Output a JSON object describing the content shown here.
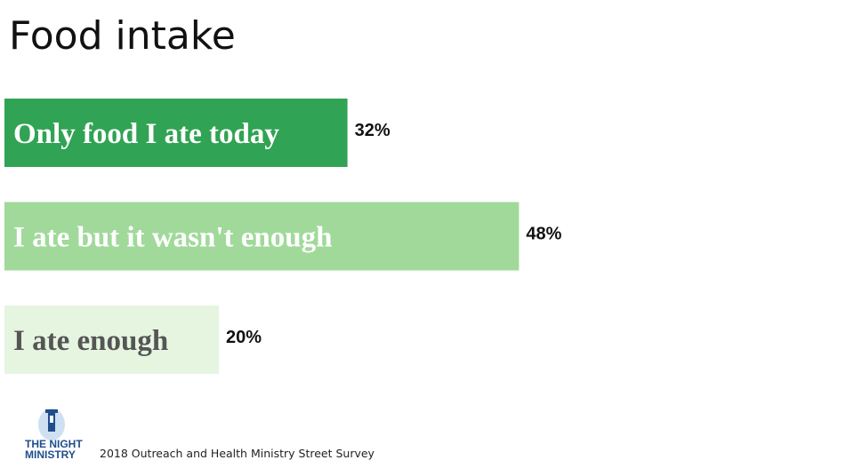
{
  "chart_data": {
    "type": "hbar",
    "title": "Food intake",
    "categories": [
      "Only food I ate today",
      "I ate but it wasn't enough",
      "I ate enough"
    ],
    "values": [
      32,
      48,
      20
    ],
    "value_labels": [
      "32%",
      "48%",
      "20%"
    ],
    "colors": [
      "#31a354",
      "#a1d99b",
      "#e5f5e0"
    ],
    "label_colors": [
      "#ffffff",
      "#ffffff",
      "#555555"
    ]
  },
  "footer": {
    "logo_top": "THE NIGHT",
    "logo_bottom": "MINISTRY",
    "source": "2018 Outreach and Health Ministry Street Survey"
  }
}
